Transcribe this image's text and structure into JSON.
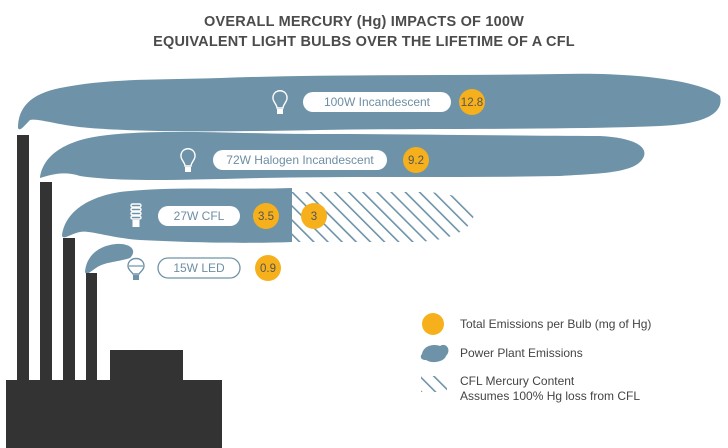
{
  "title_line1": "OVERALL MERCURY (Hg) IMPACTS OF 100W",
  "title_line2": "EQUIVALENT LIGHT BULBS OVER THE LIFETIME OF A CFL",
  "colors": {
    "smoke": "#6e93a8",
    "value_circle": "#f6b01b",
    "factory": "#333333",
    "hatch": "#6e93a8",
    "pill_text": "#6e8ea3"
  },
  "legend": {
    "total_emissions": "Total Emissions per Bulb (mg of Hg)",
    "power_plant": "Power Plant Emissions",
    "cfl_content_line1": "CFL Mercury Content",
    "cfl_content_line2": "Assumes 100% Hg loss from CFL"
  },
  "chart_data": {
    "type": "bar",
    "title": "OVERALL MERCURY (Hg) IMPACTS OF 100W EQUIVALENT LIGHT BULBS OVER THE LIFETIME OF A CFL",
    "categories": [
      "100W Incandescent",
      "72W Halogen Incandescent",
      "27W CFL",
      "15W LED"
    ],
    "icons": [
      "incandescent-bulb-icon",
      "halogen-bulb-icon",
      "cfl-bulb-icon",
      "led-bulb-icon"
    ],
    "series": [
      {
        "name": "Power Plant Emissions",
        "values": [
          12.8,
          9.2,
          3.5,
          0.9
        ]
      },
      {
        "name": "CFL Mercury Content",
        "values": [
          0,
          0,
          3,
          0
        ]
      }
    ],
    "value_labels": [
      [
        "12.8"
      ],
      [
        "9.2"
      ],
      [
        "3.5",
        "3"
      ],
      [
        "0.9"
      ]
    ],
    "units": "mg of Hg",
    "legend_position": "bottom-right"
  }
}
